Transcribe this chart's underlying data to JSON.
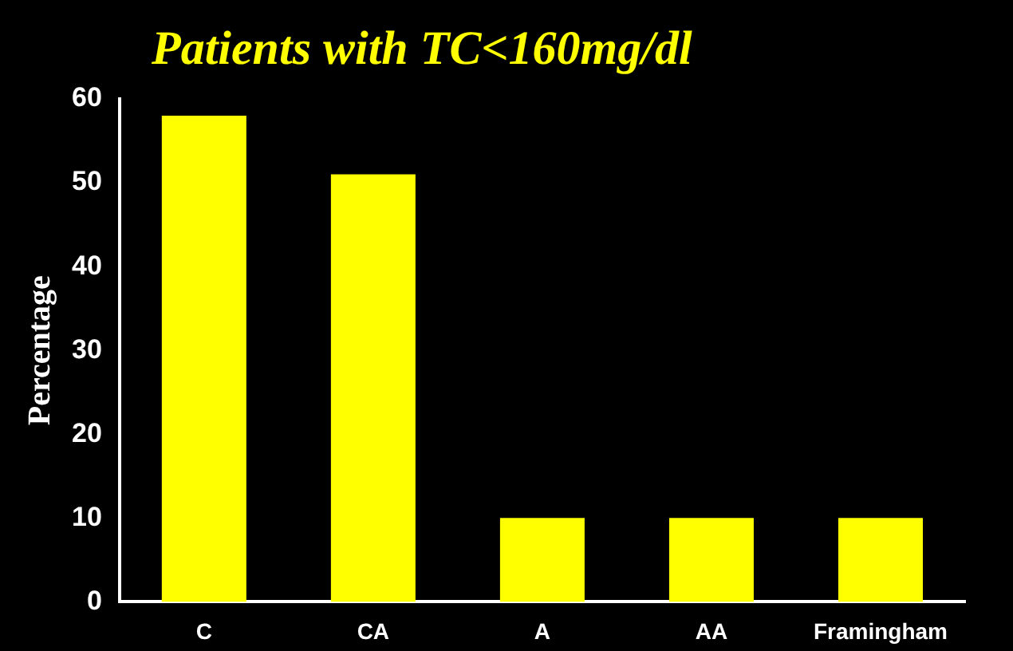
{
  "chart_data": {
    "type": "bar",
    "title": "Patients with TC<160mg/dl",
    "ylabel": "Percentage",
    "categories": [
      "C",
      "CA",
      "A",
      "AA",
      "Framingham"
    ],
    "values": [
      58,
      51,
      10,
      10,
      10
    ],
    "color": "#ffff00",
    "ylim": [
      0,
      60
    ],
    "yticks": [
      0,
      10,
      20,
      30,
      40,
      50,
      60
    ],
    "grid": false,
    "legend": false
  }
}
